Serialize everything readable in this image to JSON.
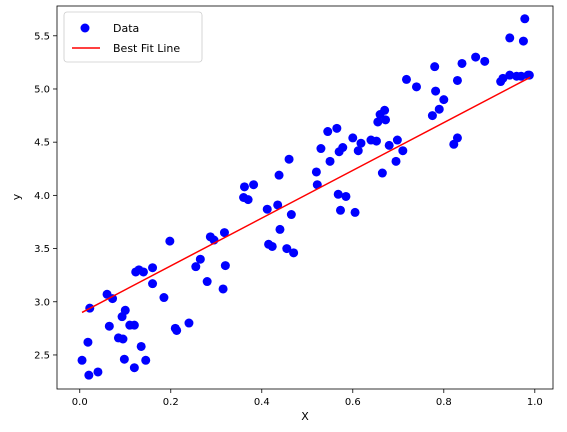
{
  "chart_data": {
    "type": "scatter",
    "title": "",
    "xlabel": "X",
    "ylabel": "y",
    "xlim": [
      -0.05,
      1.04
    ],
    "ylim": [
      2.18,
      5.78
    ],
    "xticks": [
      0.0,
      0.2,
      0.4,
      0.6,
      0.8,
      1.0
    ],
    "xtick_labels": [
      "0.0",
      "0.2",
      "0.4",
      "0.6",
      "0.8",
      "1.0"
    ],
    "yticks": [
      2.5,
      3.0,
      3.5,
      4.0,
      4.5,
      5.0,
      5.5
    ],
    "ytick_labels": [
      "2.5",
      "3.0",
      "3.5",
      "4.0",
      "4.5",
      "5.0",
      "5.5"
    ],
    "grid": false,
    "legend_position": "top-left",
    "series": [
      {
        "name": "Data",
        "kind": "scatter",
        "color": "#0000ff",
        "points": [
          [
            0.005,
            2.45
          ],
          [
            0.02,
            2.31
          ],
          [
            0.018,
            2.62
          ],
          [
            0.022,
            2.94
          ],
          [
            0.04,
            2.34
          ],
          [
            0.06,
            3.07
          ],
          [
            0.065,
            2.77
          ],
          [
            0.072,
            3.03
          ],
          [
            0.085,
            2.66
          ],
          [
            0.095,
            2.65
          ],
          [
            0.093,
            2.86
          ],
          [
            0.098,
            2.46
          ],
          [
            0.1,
            2.92
          ],
          [
            0.11,
            2.78
          ],
          [
            0.12,
            2.78
          ],
          [
            0.12,
            2.38
          ],
          [
            0.123,
            3.28
          ],
          [
            0.13,
            3.3
          ],
          [
            0.135,
            2.58
          ],
          [
            0.14,
            3.28
          ],
          [
            0.145,
            2.45
          ],
          [
            0.16,
            3.17
          ],
          [
            0.16,
            3.32
          ],
          [
            0.185,
            3.04
          ],
          [
            0.198,
            3.57
          ],
          [
            0.21,
            2.75
          ],
          [
            0.213,
            2.73
          ],
          [
            0.24,
            2.8
          ],
          [
            0.255,
            3.33
          ],
          [
            0.265,
            3.4
          ],
          [
            0.28,
            3.19
          ],
          [
            0.287,
            3.61
          ],
          [
            0.295,
            3.58
          ],
          [
            0.315,
            3.12
          ],
          [
            0.318,
            3.65
          ],
          [
            0.32,
            3.34
          ],
          [
            0.36,
            3.98
          ],
          [
            0.362,
            4.08
          ],
          [
            0.37,
            3.96
          ],
          [
            0.382,
            4.1
          ],
          [
            0.412,
            3.87
          ],
          [
            0.415,
            3.54
          ],
          [
            0.423,
            3.52
          ],
          [
            0.435,
            3.91
          ],
          [
            0.438,
            4.19
          ],
          [
            0.44,
            3.68
          ],
          [
            0.455,
            3.5
          ],
          [
            0.46,
            4.34
          ],
          [
            0.465,
            3.82
          ],
          [
            0.47,
            3.46
          ],
          [
            0.52,
            4.22
          ],
          [
            0.522,
            4.1
          ],
          [
            0.53,
            4.44
          ],
          [
            0.545,
            4.6
          ],
          [
            0.55,
            4.32
          ],
          [
            0.565,
            4.63
          ],
          [
            0.57,
            4.41
          ],
          [
            0.568,
            4.01
          ],
          [
            0.573,
            3.86
          ],
          [
            0.578,
            4.45
          ],
          [
            0.585,
            3.99
          ],
          [
            0.6,
            4.54
          ],
          [
            0.605,
            3.84
          ],
          [
            0.612,
            4.42
          ],
          [
            0.618,
            4.49
          ],
          [
            0.64,
            4.52
          ],
          [
            0.652,
            4.51
          ],
          [
            0.655,
            4.69
          ],
          [
            0.66,
            4.76
          ],
          [
            0.665,
            4.21
          ],
          [
            0.67,
            4.8
          ],
          [
            0.672,
            4.71
          ],
          [
            0.68,
            4.47
          ],
          [
            0.695,
            4.32
          ],
          [
            0.698,
            4.52
          ],
          [
            0.71,
            4.42
          ],
          [
            0.718,
            5.09
          ],
          [
            0.74,
            5.02
          ],
          [
            0.775,
            4.75
          ],
          [
            0.78,
            5.21
          ],
          [
            0.782,
            4.98
          ],
          [
            0.79,
            4.81
          ],
          [
            0.8,
            4.9
          ],
          [
            0.822,
            4.48
          ],
          [
            0.83,
            5.08
          ],
          [
            0.83,
            4.54
          ],
          [
            0.84,
            5.24
          ],
          [
            0.87,
            5.3
          ],
          [
            0.89,
            5.26
          ],
          [
            0.925,
            5.07
          ],
          [
            0.93,
            5.1
          ],
          [
            0.945,
            5.48
          ],
          [
            0.945,
            5.13
          ],
          [
            0.96,
            5.12
          ],
          [
            0.97,
            5.12
          ],
          [
            0.975,
            5.45
          ],
          [
            0.978,
            5.66
          ],
          [
            0.985,
            5.13
          ],
          [
            0.988,
            5.13
          ]
        ]
      },
      {
        "name": "Best Fit Line",
        "kind": "line",
        "color": "#ff0000",
        "points": [
          [
            0.005,
            2.9
          ],
          [
            0.99,
            5.11
          ]
        ]
      }
    ]
  }
}
